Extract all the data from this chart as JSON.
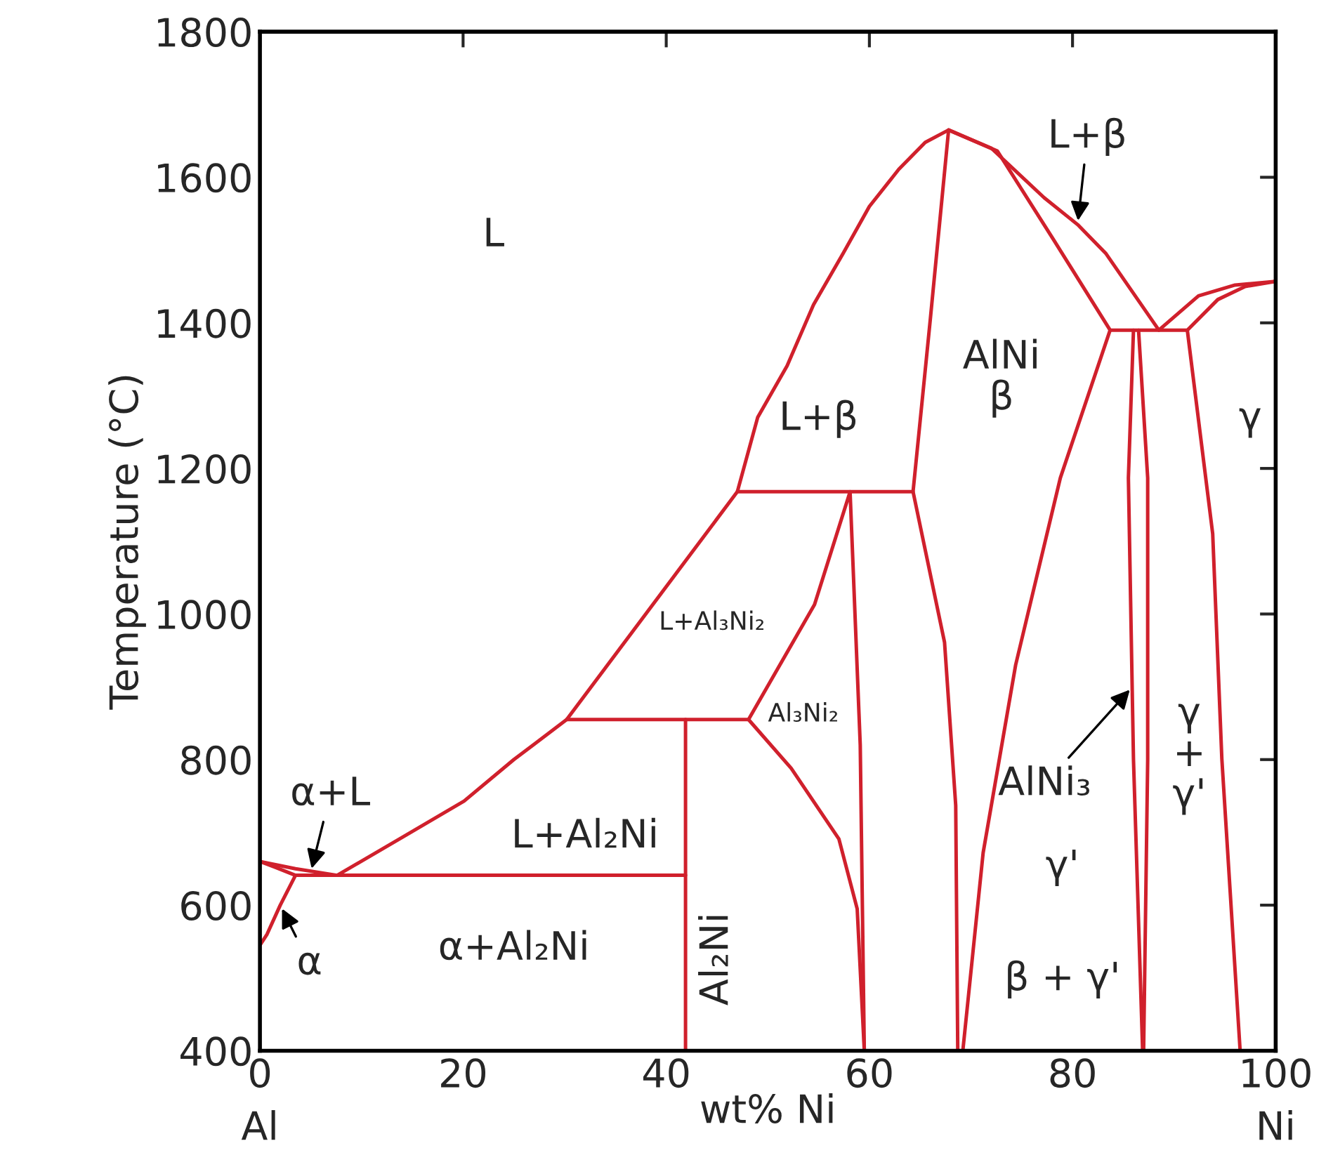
{
  "chart_data": {
    "type": "line",
    "xlabel": "wt% Ni",
    "ylabel": "Temperature (°C)",
    "xlim": [
      0,
      100
    ],
    "ylim": [
      400,
      1800
    ],
    "xticks": [
      {
        "value": 0,
        "label": "0\nAl"
      },
      20,
      40,
      60,
      80,
      {
        "value": 100,
        "label": "100\nNi"
      }
    ],
    "yticks": [
      400,
      600,
      800,
      1000,
      1200,
      1400,
      1600,
      1800
    ],
    "grid": false,
    "legend": false,
    "marker": "none",
    "line_style": "solid",
    "series": [
      {
        "color": "#d0202c",
        "x": [
          0,
          3.5,
          7.6,
          14,
          20.1,
          25,
          30.2,
          47.0,
          49,
          51.9,
          54.5,
          57.4,
          60,
          62.9,
          65.5,
          67.8,
          72,
          77.2,
          80.5,
          83.3,
          88.5,
          92.4,
          96,
          100
        ],
        "values": [
          660,
          650,
          641,
          693,
          743,
          800,
          855,
          1168,
          1270,
          1341,
          1425,
          1495,
          1560,
          1611,
          1648,
          1665,
          1640,
          1572,
          1535,
          1495,
          1390,
          1437,
          1452,
          1457
        ]
      },
      {
        "color": "#d0202c",
        "x": [
          0,
          1.5,
          3.5,
          41.9
        ],
        "values": [
          660,
          652,
          641,
          641
        ]
      },
      {
        "color": "#d0202c",
        "x": [
          3.5,
          2,
          0.7,
          0
        ],
        "values": [
          641,
          600,
          560,
          545
        ]
      },
      {
        "color": "#d0202c",
        "x": [
          41.9,
          41.9
        ],
        "values": [
          855,
          400
        ]
      },
      {
        "color": "#d0202c",
        "x": [
          30.2,
          48.1,
          54.6,
          58.1,
          59.1,
          59.5
        ],
        "values": [
          855,
          855,
          1013,
          1168,
          820,
          400
        ]
      },
      {
        "color": "#d0202c",
        "x": [
          47.0,
          64.3,
          67.4,
          68.5,
          68.7
        ],
        "values": [
          1168,
          1168,
          961,
          737,
          400
        ]
      },
      {
        "color": "#d0202c",
        "x": [
          64.3,
          66.0,
          67.8,
          72.6,
          78.1,
          83.7,
          91.3,
          94.3,
          97,
          100
        ],
        "values": [
          1168,
          1405,
          1665,
          1636,
          1515,
          1390,
          1390,
          1432,
          1450,
          1457
        ]
      },
      {
        "color": "#d0202c",
        "x": [
          48.1,
          52.3,
          57.0,
          58.8,
          59.5
        ],
        "values": [
          855,
          788,
          691,
          595,
          400
        ]
      },
      {
        "color": "#d0202c",
        "x": [
          83.7,
          78.8,
          74.4,
          71.2,
          69.2
        ],
        "values": [
          1390,
          1187,
          930,
          672,
          400
        ]
      },
      {
        "color": "#d0202c",
        "x": [
          86.0,
          85.5,
          86.0,
          86.9
        ],
        "values": [
          1390,
          1187,
          800,
          400
        ]
      },
      {
        "color": "#d0202c",
        "x": [
          86.5,
          87.4,
          87.4,
          87.0
        ],
        "values": [
          1390,
          1187,
          800,
          400
        ]
      },
      {
        "color": "#d0202c",
        "x": [
          91.3,
          93.8,
          94.7,
          96.5
        ],
        "values": [
          1390,
          1110,
          801,
          400
        ]
      }
    ],
    "annotations": [
      "L",
      "L+β",
      "AlNi\nβ",
      {
        "text": "L+β",
        "x": 80.5,
        "y": 1535
      },
      "γ",
      "L+Al₃Ni₂",
      "Al₃Ni₂",
      "L+Al₂Ni",
      {
        "text": "α+L",
        "x": 5,
        "y": 645
      },
      {
        "text": "α",
        "x": 2,
        "y": 600
      },
      "α+Al₂Ni",
      "Al₂Ni",
      {
        "text": "AlNi₃",
        "x": 85.9,
        "y": 900
      },
      "γ'",
      "γ\n+\nγ'",
      "β + γ'"
    ]
  }
}
